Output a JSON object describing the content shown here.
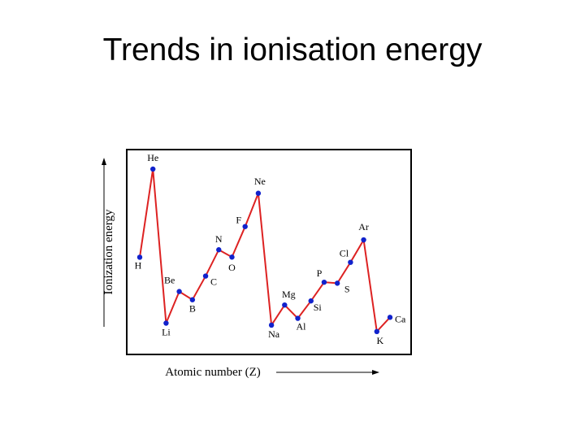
{
  "slide": {
    "title": "Trends in ionisation energy"
  },
  "chart_data": {
    "type": "line",
    "xlabel": "Atomic number (Z)",
    "ylabel": "Ionization energy",
    "grid": false,
    "legend": "none",
    "colors": {
      "line": "#dd2222",
      "marker": "#1122cc",
      "frame": "#000000"
    },
    "x": [
      1,
      2,
      3,
      4,
      5,
      6,
      7,
      8,
      9,
      10,
      11,
      12,
      13,
      14,
      15,
      16,
      17,
      18,
      19,
      20
    ],
    "categories": [
      "H",
      "He",
      "Li",
      "Be",
      "B",
      "C",
      "N",
      "O",
      "F",
      "Ne",
      "Na",
      "Mg",
      "Al",
      "Si",
      "P",
      "S",
      "Cl",
      "Ar",
      "K",
      "Ca"
    ],
    "series": [
      {
        "values": [
          1312,
          2372,
          520,
          900,
          801,
          1086,
          1402,
          1314,
          1681,
          2081,
          496,
          738,
          578,
          787,
          1012,
          1000,
          1251,
          1521,
          419,
          590
        ]
      }
    ],
    "ylim": [
      300,
      2450
    ]
  }
}
